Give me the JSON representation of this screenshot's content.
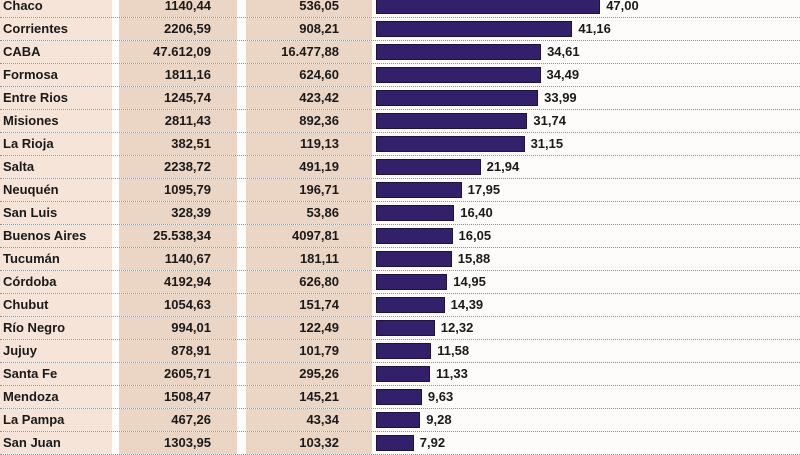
{
  "chart_data": {
    "type": "bar",
    "orientation": "horizontal",
    "bar_color": "#33206a",
    "xlim": [
      0,
      50
    ],
    "categories": [
      "Chaco",
      "Corrientes",
      "CABA",
      "Formosa",
      "Entre Rios",
      "Misiones",
      "La Rioja",
      "Salta",
      "Neuquén",
      "San Luis",
      "Buenos Aires",
      "Tucumán",
      "Córdoba",
      "Chubut",
      "Río Negro",
      "Jujuy",
      "Santa Fe",
      "Mendoza",
      "La Pampa",
      "San Juan"
    ],
    "col1": [
      "1140,44",
      "2206,59",
      "47.612,09",
      "1811,16",
      "1245,74",
      "2811,43",
      "382,51",
      "2238,72",
      "1095,79",
      "328,39",
      "25.538,34",
      "1140,67",
      "4192,94",
      "1054,63",
      "994,01",
      "878,91",
      "2605,71",
      "1508,47",
      "467,26",
      "1303,95"
    ],
    "col2": [
      "536,05",
      "908,21",
      "16.477,88",
      "624,60",
      "423,42",
      "892,36",
      "119,13",
      "491,19",
      "196,71",
      "53,86",
      "4097,81",
      "181,11",
      "626,80",
      "151,74",
      "122,49",
      "101,79",
      "295,26",
      "145,21",
      "43,34",
      "103,32"
    ],
    "values": [
      47.0,
      41.16,
      34.61,
      34.49,
      33.99,
      31.74,
      31.15,
      21.94,
      17.95,
      16.4,
      16.05,
      15.88,
      14.95,
      14.39,
      12.32,
      11.58,
      11.33,
      9.63,
      9.28,
      7.92
    ],
    "value_labels": [
      "47,00",
      "41,16",
      "34,61",
      "34,49",
      "33,99",
      "31,74",
      "31,15",
      "21,94",
      "17,95",
      "16,40",
      "16,05",
      "15,88",
      "14,95",
      "14,39",
      "12,32",
      "11,58",
      "11,33",
      "9,63",
      "9,28",
      "7,92"
    ]
  }
}
